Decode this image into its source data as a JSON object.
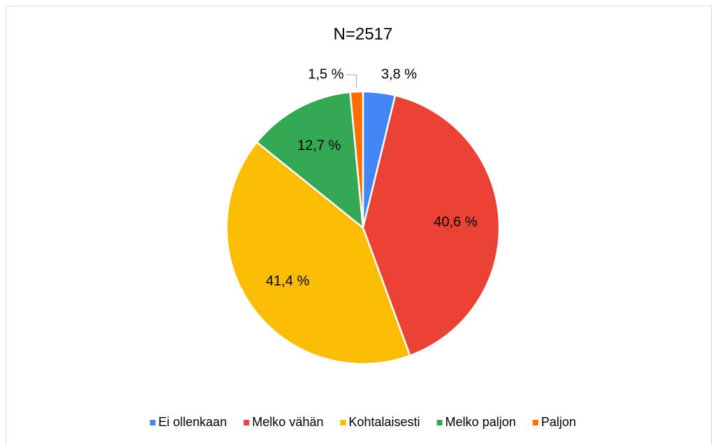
{
  "chart_data": {
    "type": "pie",
    "title": "N=2517",
    "categories": [
      "Ei ollenkaan",
      "Melko vähän",
      "Kohtalaisesti",
      "Melko paljon",
      "Paljon"
    ],
    "values": [
      3.8,
      40.6,
      41.4,
      12.7,
      1.5
    ],
    "value_labels": [
      "3,8 %",
      "40,6 %",
      "41,4 %",
      "12,7 %",
      "1,5 %"
    ],
    "colors": [
      "#4285f4",
      "#ea4335",
      "#fbbc04",
      "#34a853",
      "#ff6d01"
    ],
    "legend": "bottom"
  }
}
